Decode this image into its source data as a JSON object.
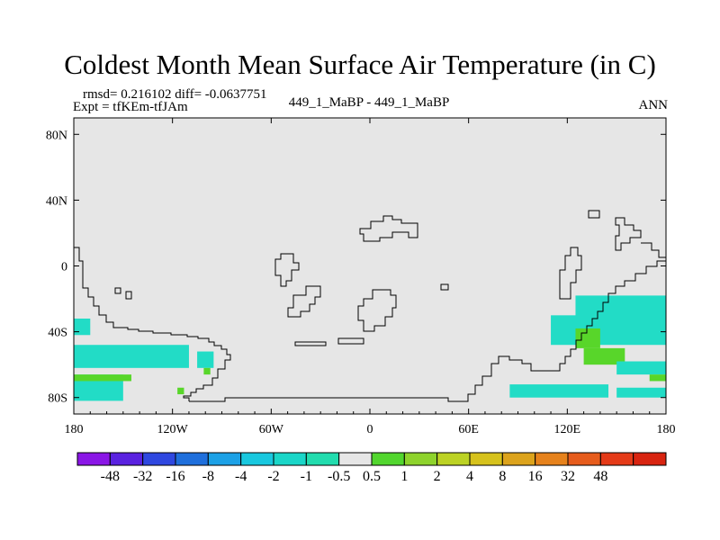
{
  "title": "Coldest Month Mean Surface Air Temperature (in C)",
  "stats": "rmsd= 0.216102 diff= -0.0637751",
  "experiment": "Expt = tfKEm-tfJAm",
  "cases": "449_1_MaBP - 449_1_MaBP",
  "season": "ANN",
  "colors": {
    "background": "#e6e6e6",
    "coastline": "#000000"
  },
  "chart_data": {
    "type": "heatmap",
    "projection": "cylindrical-equidistant",
    "xlim": [
      -180,
      180
    ],
    "ylim": [
      -90,
      90
    ],
    "x_ticks": [
      {
        "value": -180,
        "label": "180"
      },
      {
        "value": -120,
        "label": "120W"
      },
      {
        "value": -60,
        "label": "60W"
      },
      {
        "value": 0,
        "label": "0"
      },
      {
        "value": 60,
        "label": "60E"
      },
      {
        "value": 120,
        "label": "120E"
      },
      {
        "value": 180,
        "label": "180"
      }
    ],
    "y_ticks": [
      {
        "value": 80,
        "label": "80N"
      },
      {
        "value": 40,
        "label": "40N"
      },
      {
        "value": 0,
        "label": "0"
      },
      {
        "value": -40,
        "label": "40S"
      },
      {
        "value": -80,
        "label": "80S"
      }
    ],
    "colorbar": {
      "colors": [
        "#8a16e6",
        "#5a22e0",
        "#2f48e0",
        "#1f6fdc",
        "#1ca1e6",
        "#19c8df",
        "#1ad6c8",
        "#22dcae",
        "#e6e6e6",
        "#52d62e",
        "#8ed32c",
        "#bcd224",
        "#d6c21c",
        "#dca31c",
        "#e6821c",
        "#e65c1c",
        "#e43a18",
        "#d82410"
      ],
      "levels": [
        "-48",
        "-32",
        "-16",
        "-8",
        "-4",
        "-2",
        "-1",
        "-0.5",
        "0.5",
        "1",
        "2",
        "4",
        "8",
        "16",
        "32",
        "48"
      ]
    },
    "regions": [
      {
        "name": "cyan",
        "color": "#22dcc6",
        "lon": [
          -180,
          -170
        ],
        "lat": [
          -32,
          -42
        ]
      },
      {
        "name": "cyan",
        "color": "#22dcc6",
        "lon": [
          -180,
          -110
        ],
        "lat": [
          -48,
          -62
        ]
      },
      {
        "name": "cyan",
        "color": "#22dcc6",
        "lon": [
          -180,
          -150
        ],
        "lat": [
          -66,
          -82
        ]
      },
      {
        "name": "green",
        "color": "#58d62a",
        "lon": [
          -180,
          -145
        ],
        "lat": [
          -66,
          -70
        ]
      },
      {
        "name": "cyan",
        "color": "#22dcc6",
        "lon": [
          -105,
          -95
        ],
        "lat": [
          -52,
          -62
        ]
      },
      {
        "name": "green",
        "color": "#58d62a",
        "lon": [
          -101,
          -97
        ],
        "lat": [
          -62,
          -66
        ]
      },
      {
        "name": "green",
        "color": "#58d62a",
        "lon": [
          -117,
          -113
        ],
        "lat": [
          -74,
          -78
        ]
      },
      {
        "name": "cyan",
        "color": "#22dcc6",
        "lon": [
          125,
          180
        ],
        "lat": [
          -18,
          -32
        ]
      },
      {
        "name": "cyan",
        "color": "#22dcc6",
        "lon": [
          110,
          180
        ],
        "lat": [
          -30,
          -48
        ]
      },
      {
        "name": "green",
        "color": "#58d62a",
        "lon": [
          125,
          140
        ],
        "lat": [
          -38,
          -50
        ]
      },
      {
        "name": "green",
        "color": "#58d62a",
        "lon": [
          130,
          155
        ],
        "lat": [
          -50,
          -60
        ]
      },
      {
        "name": "cyan",
        "color": "#22dcc6",
        "lon": [
          150,
          180
        ],
        "lat": [
          -58,
          -66
        ]
      },
      {
        "name": "green",
        "color": "#58d62a",
        "lon": [
          170,
          180
        ],
        "lat": [
          -66,
          -70
        ]
      },
      {
        "name": "cyan",
        "color": "#22dcc6",
        "lon": [
          85,
          145
        ],
        "lat": [
          -72,
          -80
        ]
      },
      {
        "name": "cyan",
        "color": "#22dcc6",
        "lon": [
          150,
          180
        ],
        "lat": [
          -74,
          -80
        ]
      }
    ]
  }
}
